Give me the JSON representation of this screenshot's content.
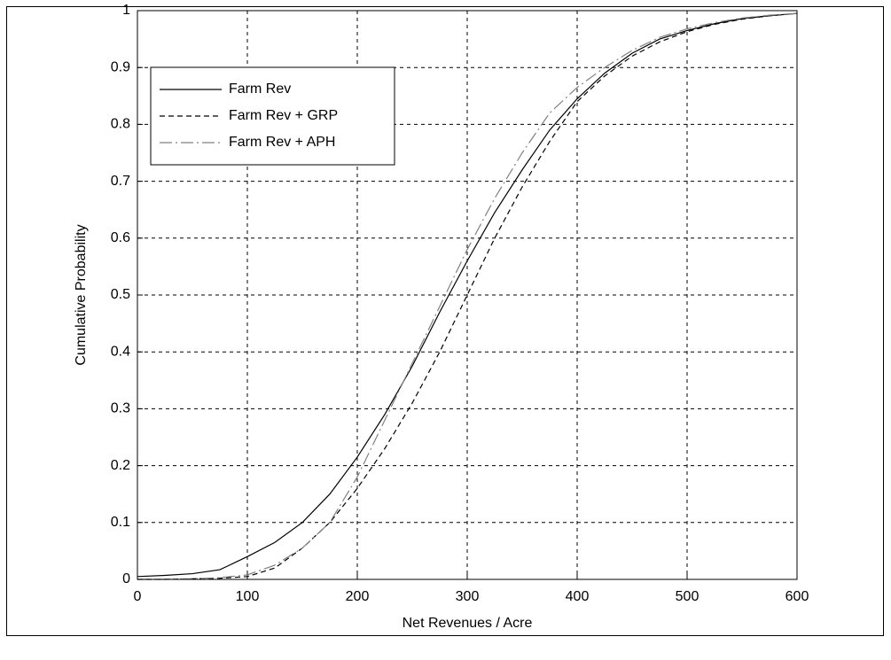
{
  "chart_data": {
    "type": "line",
    "xlabel": "Net Revenues / Acre",
    "ylabel": "Cumulative Probability",
    "x": [
      0,
      25,
      50,
      75,
      100,
      125,
      150,
      175,
      200,
      225,
      250,
      275,
      300,
      325,
      350,
      375,
      400,
      425,
      450,
      475,
      500,
      525,
      550,
      575,
      600
    ],
    "series": [
      {
        "name": "Farm Rev",
        "color": "#000000",
        "dash": "solid",
        "values": [
          0.005,
          0.007,
          0.01,
          0.017,
          0.04,
          0.065,
          0.1,
          0.15,
          0.215,
          0.29,
          0.375,
          0.47,
          0.56,
          0.645,
          0.72,
          0.79,
          0.845,
          0.89,
          0.925,
          0.95,
          0.965,
          0.977,
          0.986,
          0.991,
          0.995
        ]
      },
      {
        "name": "Farm Rev + GRP",
        "color": "#000000",
        "dash": "dashed",
        "values": [
          0,
          0,
          0.001,
          0.002,
          0.005,
          0.02,
          0.055,
          0.1,
          0.16,
          0.23,
          0.31,
          0.4,
          0.5,
          0.6,
          0.69,
          0.77,
          0.84,
          0.885,
          0.92,
          0.945,
          0.963,
          0.976,
          0.985,
          0.991,
          0.995
        ]
      },
      {
        "name": "Farm Rev + APH",
        "color": "#808080",
        "dash": "dashdot",
        "values": [
          0,
          0,
          0.001,
          0.003,
          0.008,
          0.025,
          0.055,
          0.1,
          0.18,
          0.28,
          0.38,
          0.48,
          0.58,
          0.67,
          0.75,
          0.82,
          0.865,
          0.9,
          0.93,
          0.953,
          0.968,
          0.979,
          0.987,
          0.992,
          0.995
        ]
      }
    ],
    "xlim": [
      0,
      600
    ],
    "xticks": [
      0,
      100,
      200,
      300,
      400,
      500,
      600
    ],
    "ylim": [
      0,
      1
    ],
    "yticks": [
      0,
      0.1,
      0.2,
      0.3,
      0.4,
      0.5,
      0.6,
      0.7,
      0.8,
      0.9,
      1
    ],
    "grid": true,
    "legend": "upper left"
  }
}
